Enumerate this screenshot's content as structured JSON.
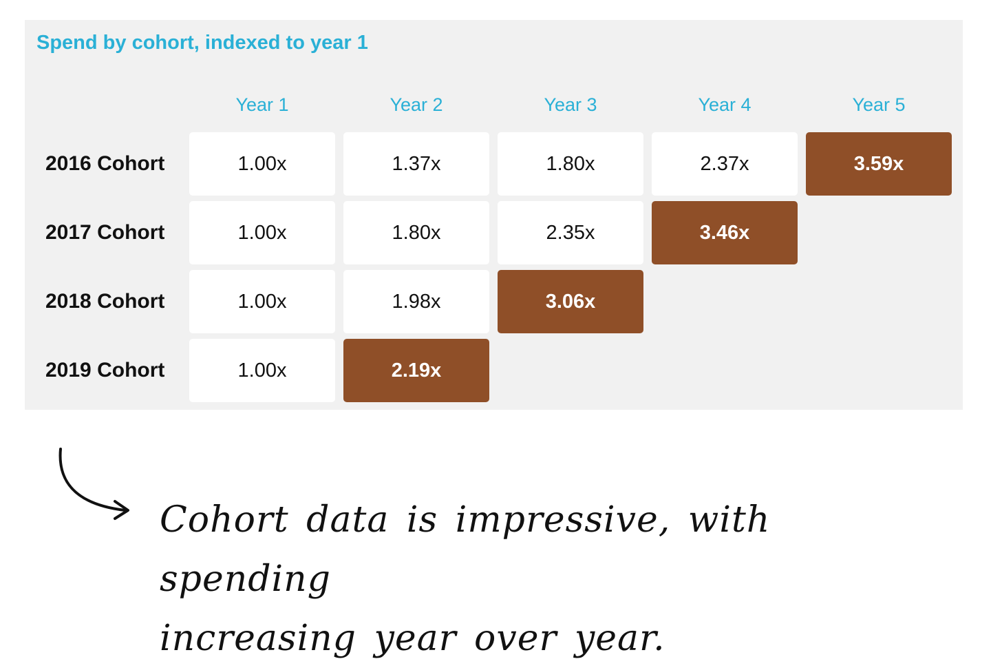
{
  "chart_data": {
    "type": "table",
    "title": "Spend by cohort, indexed to year 1",
    "columns": [
      "Year 1",
      "Year 2",
      "Year 3",
      "Year 4",
      "Year 5"
    ],
    "rows": [
      {
        "label": "2016 Cohort",
        "values": [
          "1.00x",
          "1.37x",
          "1.80x",
          "2.37x",
          "3.59x"
        ],
        "highlight_index": 4
      },
      {
        "label": "2017 Cohort",
        "values": [
          "1.00x",
          "1.80x",
          "2.35x",
          "3.46x"
        ],
        "highlight_index": 3
      },
      {
        "label": "2018 Cohort",
        "values": [
          "1.00x",
          "1.98x",
          "3.06x"
        ],
        "highlight_index": 2
      },
      {
        "label": "2019 Cohort",
        "values": [
          "1.00x",
          "2.19x"
        ],
        "highlight_index": 1
      }
    ],
    "colors": {
      "title": "#2ab0d6",
      "header": "#2ab0d6",
      "highlight": "#8f4f28",
      "cell": "#ffffff",
      "panel": "#f1f1f1"
    }
  },
  "annotation": {
    "line1": "Cohort data is impressive, with spending",
    "line2": "increasing year over year.",
    "icon": "curved-arrow-icon"
  }
}
